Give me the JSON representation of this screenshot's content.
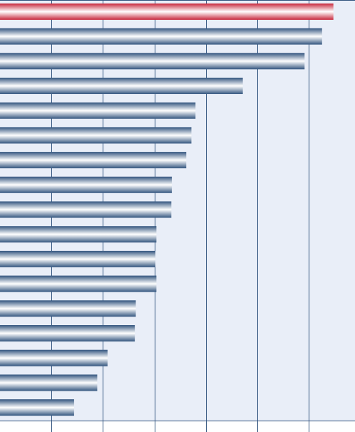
{
  "chart_data": {
    "type": "barh",
    "categories": [
      null,
      null,
      null,
      null,
      null,
      null,
      null,
      null,
      null,
      null,
      null,
      null,
      null,
      null,
      null,
      null,
      null
    ],
    "values": [
      6.48,
      6.26,
      5.92,
      4.72,
      3.8,
      3.72,
      3.62,
      3.34,
      3.33,
      3.04,
      3.02,
      3.04,
      2.64,
      2.62,
      2.09,
      1.89,
      1.44
    ],
    "colors": [
      "#c8283c",
      "#33557f",
      "#33557f",
      "#33557f",
      "#33557f",
      "#33557f",
      "#33557f",
      "#33557f",
      "#33557f",
      "#33557f",
      "#33557f",
      "#33557f",
      "#33557f",
      "#33557f",
      "#33557f",
      "#33557f",
      "#33557f"
    ],
    "xlim": [
      0,
      6.9
    ],
    "xticks": [
      1,
      2,
      3,
      4,
      5,
      6
    ],
    "grid": true
  }
}
